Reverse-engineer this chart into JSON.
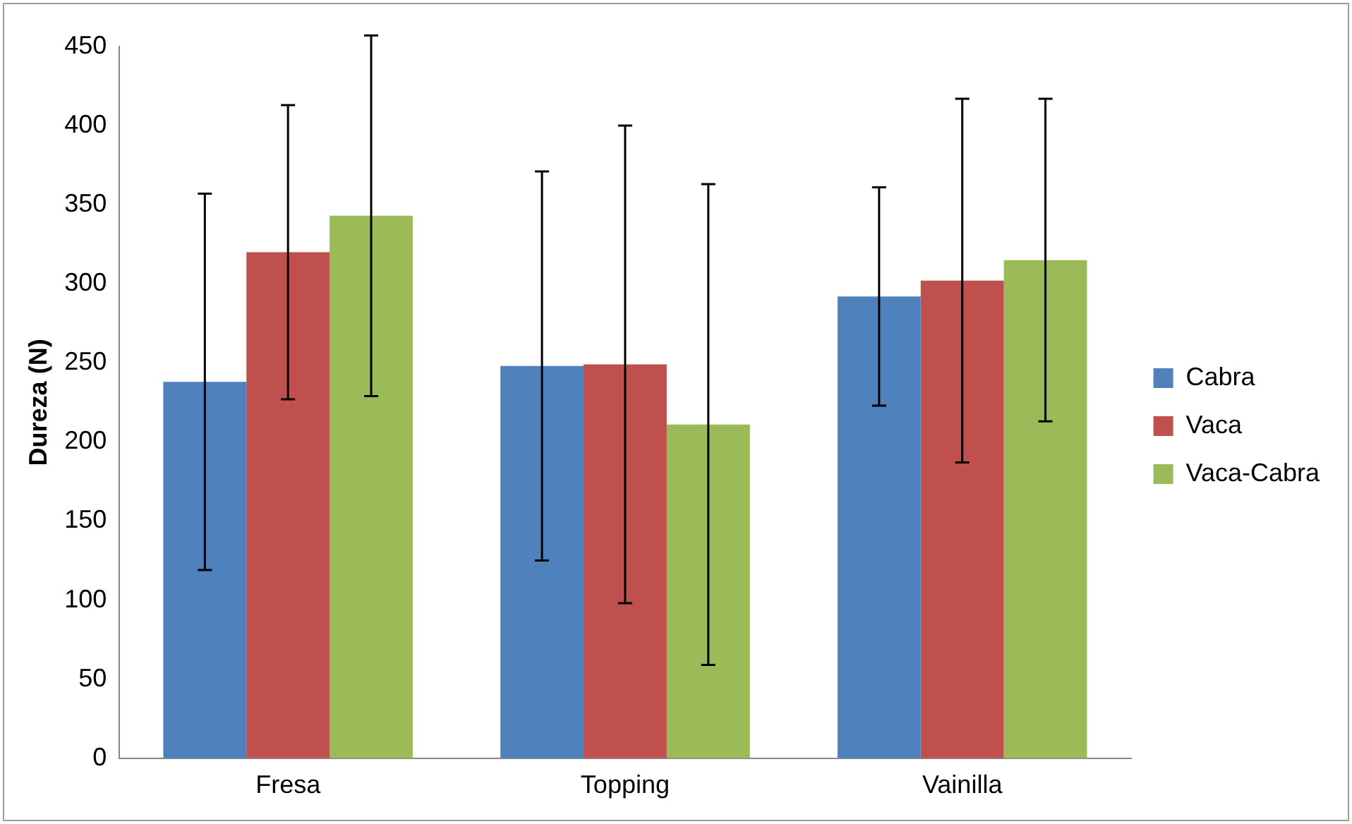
{
  "chart_data": {
    "type": "bar",
    "ylabel": "Dureza (N)",
    "categories": [
      "Fresa",
      "Topping",
      "Vainilla"
    ],
    "series": [
      {
        "name": "Cabra",
        "color": "#4f81bd",
        "values": [
          238,
          248,
          292
        ],
        "errors": [
          119,
          123,
          69
        ]
      },
      {
        "name": "Vaca",
        "color": "#c0504d",
        "values": [
          320,
          249,
          302
        ],
        "errors": [
          93,
          151,
          115
        ]
      },
      {
        "name": "Vaca-Cabra",
        "color": "#9bbb59",
        "values": [
          343,
          211,
          315
        ],
        "errors": [
          114,
          152,
          102
        ]
      }
    ],
    "ylim": [
      0,
      450
    ],
    "yticks": [
      0,
      50,
      100,
      150,
      200,
      250,
      300,
      350,
      400,
      450
    ],
    "grid": false,
    "legend": "right"
  }
}
